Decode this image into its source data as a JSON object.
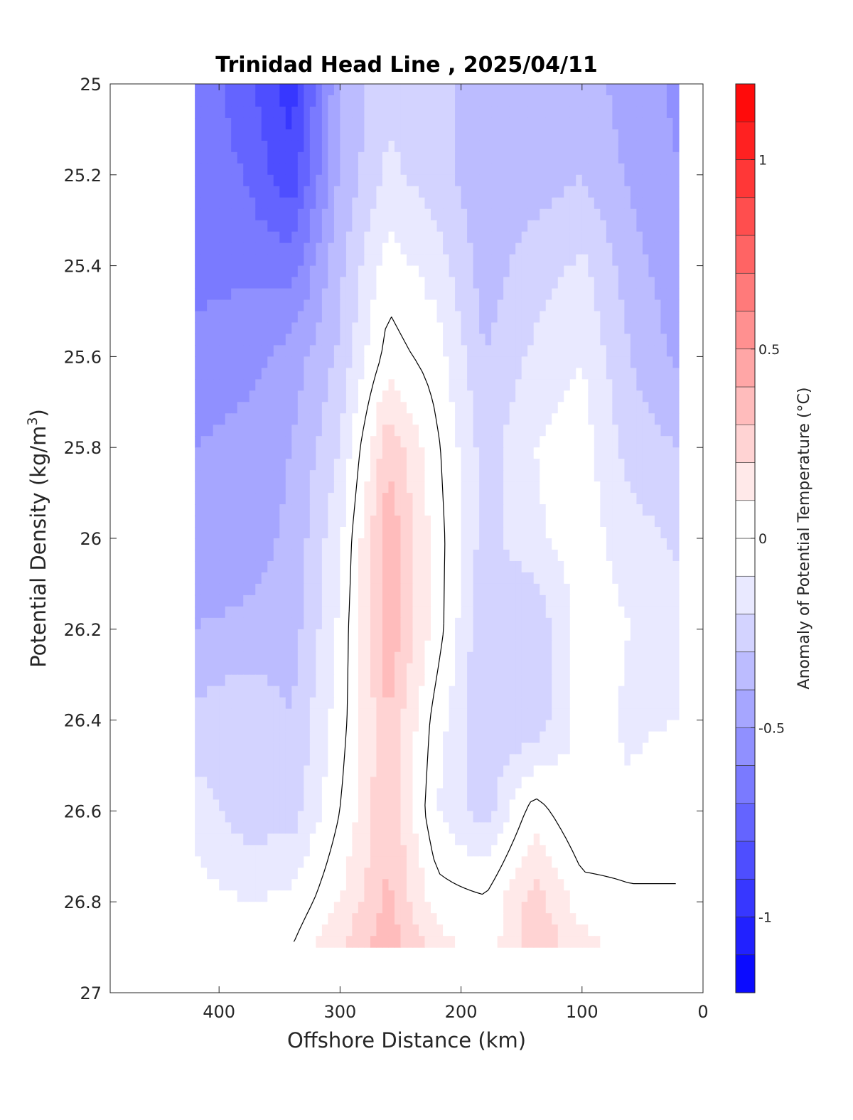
{
  "chart_data": {
    "type": "heatmap",
    "title": "Trinidad Head Line , 2025/04/11",
    "xlabel": "Offshore Distance (km)",
    "ylabel_main": "Potential Density (kg/m",
    "ylabel_sup": "3",
    "ylabel_tail": ")",
    "xlim": [
      490,
      0
    ],
    "x_reversed": true,
    "ylim": [
      25,
      27
    ],
    "y_reversed": true,
    "x_ticks": [
      400,
      300,
      200,
      100,
      0
    ],
    "y_ticks": [
      "25",
      "25.2",
      "25.4",
      "25.6",
      "25.8",
      "26",
      "26.2",
      "26.4",
      "26.6",
      "26.8",
      "27"
    ],
    "colorbar": {
      "label": "Anomaly of Potential Temperature (°C)",
      "range": [
        -1.2,
        1.2
      ],
      "step": 0.1,
      "ticks": [
        {
          "value": 1,
          "label": "1"
        },
        {
          "value": 0.5,
          "label": "0.5"
        },
        {
          "value": 0,
          "label": "0"
        },
        {
          "value": -0.5,
          "label": "-0.5"
        },
        {
          "value": -1,
          "label": "-1"
        }
      ],
      "neg_color": "#0000ff",
      "pos_color": "#ff0000",
      "zero_color": "#ffffff"
    },
    "data_extent": {
      "x": [
        420,
        20
      ],
      "y": [
        25,
        26.9
      ]
    },
    "grid_x": [
      420,
      380,
      340,
      300,
      260,
      220,
      180,
      140,
      100,
      60,
      20
    ],
    "grid_y": [
      25.0,
      25.2,
      25.4,
      25.6,
      25.8,
      26.0,
      26.2,
      26.4,
      26.6,
      26.8,
      26.9
    ],
    "values": [
      [
        -0.62,
        -0.75,
        -0.95,
        -0.4,
        -0.22,
        -0.25,
        -0.38,
        -0.4,
        -0.35,
        -0.45,
        -0.52
      ],
      [
        -0.65,
        -0.7,
        -0.88,
        -0.38,
        -0.18,
        -0.25,
        -0.38,
        -0.35,
        -0.3,
        -0.42,
        -0.5
      ],
      [
        -0.62,
        -0.62,
        -0.65,
        -0.32,
        -0.05,
        -0.15,
        -0.35,
        -0.25,
        -0.18,
        -0.35,
        -0.48
      ],
      [
        -0.58,
        -0.55,
        -0.45,
        -0.28,
        0.05,
        -0.05,
        -0.3,
        -0.18,
        -0.1,
        -0.3,
        -0.42
      ],
      [
        -0.5,
        -0.45,
        -0.4,
        -0.2,
        0.28,
        0.02,
        -0.25,
        -0.1,
        -0.05,
        -0.25,
        -0.3
      ],
      [
        -0.45,
        -0.45,
        -0.38,
        -0.12,
        0.38,
        0.05,
        -0.25,
        -0.12,
        -0.05,
        -0.15,
        -0.22
      ],
      [
        -0.4,
        -0.38,
        -0.35,
        -0.08,
        0.38,
        0.05,
        -0.3,
        -0.3,
        -0.05,
        -0.1,
        -0.15
      ],
      [
        -0.28,
        -0.2,
        -0.3,
        -0.05,
        0.3,
        -0.05,
        -0.3,
        -0.28,
        -0.05,
        -0.12,
        -0.1
      ],
      [
        -0.15,
        -0.25,
        -0.25,
        0.0,
        0.3,
        -0.1,
        -0.25,
        0.05,
        -0.1,
        -0.08,
        0.0
      ],
      [
        -0.05,
        -0.1,
        -0.08,
        0.1,
        0.32,
        0.05,
        0.02,
        0.25,
        0.05,
        0.02,
        0.0
      ],
      [
        0.0,
        -0.05,
        0.0,
        0.2,
        0.38,
        0.15,
        0.02,
        0.28,
        0.15,
        0.05,
        0.0
      ]
    ]
  }
}
